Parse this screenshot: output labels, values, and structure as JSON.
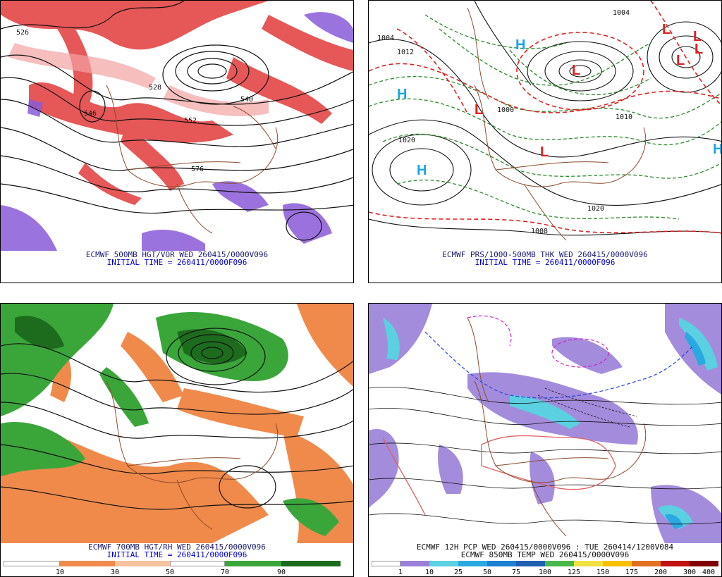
{
  "panels": {
    "p500": {
      "caption_line1": "ECMWF 500MB HGT/VOR WED 260415/0000V096",
      "caption_line2": "INITIAL TIME = 260411/0000F096",
      "contour_labels": [
        "526",
        "540",
        "552",
        "576",
        "528",
        "546"
      ]
    },
    "pmslp": {
      "caption_line1": "ECMWF PRS/1000-500MB THK WED 260415/0000V096",
      "caption_line2": "INITIAL TIME = 260411/0000F096",
      "isobar_labels": [
        "1004",
        "1012",
        "1020",
        "1000",
        "1010",
        "1020",
        "1004",
        "1008"
      ],
      "pressure_centers": [
        "H",
        "H",
        "H",
        "H",
        "L",
        "L",
        "L",
        "L",
        "L",
        "L",
        "L"
      ]
    },
    "p700": {
      "caption_line1": "ECMWF 700MB HGT/RH WED 260415/0000V096",
      "caption_line2": "INITIAL TIME = 260411/0000F096",
      "colorbar_labels": [
        "10",
        "30",
        "50",
        "70",
        "90"
      ],
      "colors": {
        "dry": "#f08a4b",
        "wet": "#3aa63a",
        "dark_wet": "#1d6b1d"
      }
    },
    "pcp": {
      "caption_line1": "ECMWF 12H PCP WED 260415/0000V096 : TUE 260414/1200V084",
      "caption_line2": "ECMWF 850MB TEMP WED 260415/0000V096",
      "colorbar_labels": [
        "1",
        "10",
        "25",
        "50",
        "75",
        "100",
        "125",
        "150",
        "175",
        "200",
        "300",
        "400"
      ],
      "colorbar_colors": [
        "#ffffff",
        "#9a80d8",
        "#5ad0e0",
        "#2aa8e0",
        "#1c7fd0",
        "#1f5fb0",
        "#48b848",
        "#f0e040",
        "#f8c000",
        "#e07020",
        "#c01010",
        "#800000"
      ]
    }
  }
}
